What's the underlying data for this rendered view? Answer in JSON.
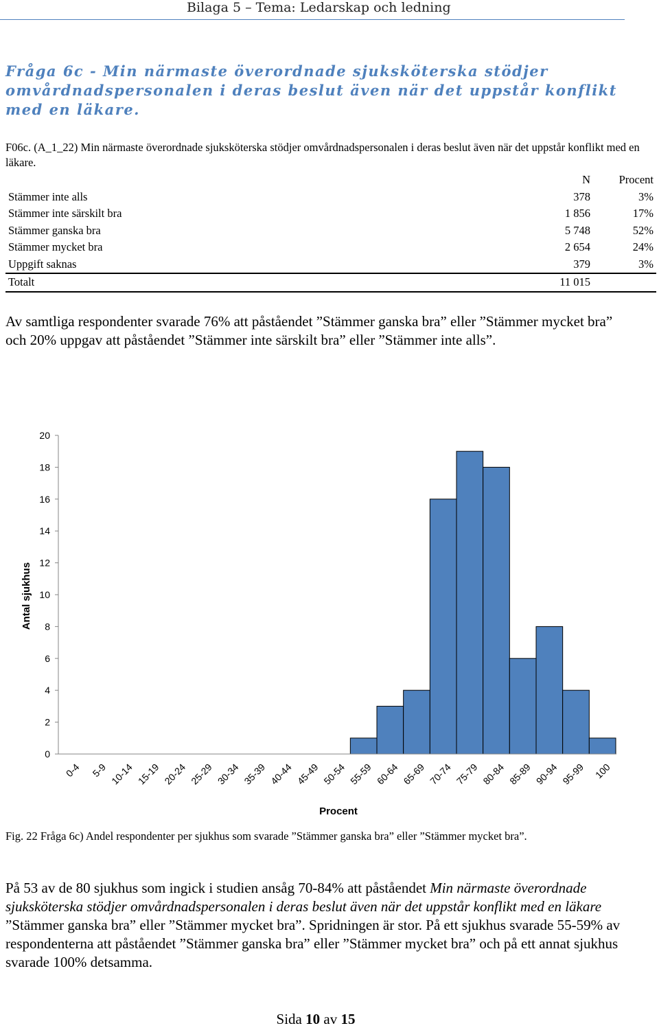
{
  "header": {
    "title": "Bilaga 5 – Tema: Ledarskap och ledning"
  },
  "question_heading": "Fråga 6c - Min närmaste överordnade sjuksköterska stödjer omvårdnadspersonalen i deras beslut även när det uppstår konflikt med en läkare.",
  "table": {
    "caption": "F06c. (A_1_22) Min närmaste överordnade sjuksköterska stödjer omvårdnadspersonalen i deras beslut även när det uppstår konflikt med en läkare.",
    "columns": [
      "",
      "N",
      "Procent"
    ],
    "rows": [
      {
        "label": "Stämmer inte alls",
        "n": "378",
        "pct": "3%"
      },
      {
        "label": "Stämmer inte särskilt bra",
        "n": "1 856",
        "pct": "17%"
      },
      {
        "label": "Stämmer ganska bra",
        "n": "5 748",
        "pct": "52%"
      },
      {
        "label": "Stämmer mycket bra",
        "n": "2 654",
        "pct": "24%"
      },
      {
        "label": "Uppgift saknas",
        "n": "379",
        "pct": "3%"
      }
    ],
    "total": {
      "label": "Totalt",
      "n": "11 015",
      "pct": ""
    }
  },
  "paragraph1": "Av samtliga respondenter svarade 76% att påståendet ”Stämmer ganska bra” eller ”Stämmer mycket bra” och 20% uppgav att påståendet ”Stämmer inte särskilt bra” eller ”Stämmer inte alls”.",
  "chart_data": {
    "type": "bar",
    "categories": [
      "0-4",
      "5-9",
      "10-14",
      "15-19",
      "20-24",
      "25-29",
      "30-34",
      "35-39",
      "40-44",
      "45-49",
      "50-54",
      "55-59",
      "60-64",
      "65-69",
      "70-74",
      "75-79",
      "80-84",
      "85-89",
      "90-94",
      "95-99",
      "100"
    ],
    "values": [
      0,
      0,
      0,
      0,
      0,
      0,
      0,
      0,
      0,
      0,
      0,
      1,
      3,
      4,
      16,
      19,
      18,
      6,
      8,
      4,
      1
    ],
    "xlabel": "Procent",
    "ylabel": "Antal sjukhus",
    "ylim": [
      0,
      20
    ],
    "yticks": [
      "0",
      "2",
      "4",
      "6",
      "8",
      "10",
      "12",
      "14",
      "16",
      "18",
      "20"
    ],
    "bar_color": "#4f81bd",
    "grid": false
  },
  "figure_caption": "Fig. 22 Fråga 6c) Andel respondenter per sjukhus som svarade ”Stämmer ganska bra” eller ”Stämmer mycket bra”.",
  "paragraph2": {
    "part1": "På 53 av de 80 sjukhus som ingick i studien ansåg 70-84% att påståendet ",
    "italic": "Min närmaste överordnade sjuksköterska stödjer omvårdnadspersonalen i deras beslut även när det uppstår konflikt med en läkare",
    "part2": " ”Stämmer ganska bra” eller ”Stämmer mycket bra”. Spridningen är stor. På ett sjukhus svarade 55-59% av respondenterna att påståendet ”Stämmer ganska bra” eller ”Stämmer mycket bra” och på ett annat sjukhus svarade 100% detsamma."
  },
  "footer": {
    "prefix": "Sida ",
    "page": "10",
    "middle": " av ",
    "total": "15"
  }
}
